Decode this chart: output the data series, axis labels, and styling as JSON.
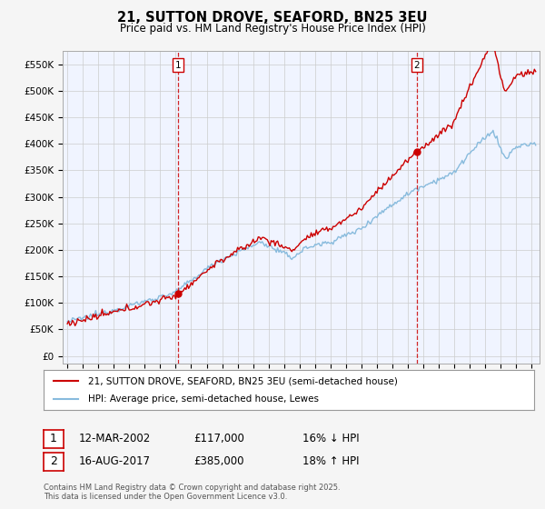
{
  "title": "21, SUTTON DROVE, SEAFORD, BN25 3EU",
  "subtitle": "Price paid vs. HM Land Registry's House Price Index (HPI)",
  "sale1_date": "12-MAR-2002",
  "sale1_price": 117000,
  "sale1_hpi_note": "16% ↓ HPI",
  "sale2_date": "16-AUG-2017",
  "sale2_price": 385000,
  "sale2_hpi_note": "18% ↑ HPI",
  "legend_property": "21, SUTTON DROVE, SEAFORD, BN25 3EU (semi-detached house)",
  "legend_hpi": "HPI: Average price, semi-detached house, Lewes",
  "footer": "Contains HM Land Registry data © Crown copyright and database right 2025.\nThis data is licensed under the Open Government Licence v3.0.",
  "ylabel_ticks": [
    "£0",
    "£50K",
    "£100K",
    "£150K",
    "£200K",
    "£250K",
    "£300K",
    "£350K",
    "£400K",
    "£450K",
    "£500K",
    "£550K"
  ],
  "ytick_values": [
    0,
    50000,
    100000,
    150000,
    200000,
    250000,
    300000,
    350000,
    400000,
    450000,
    500000,
    550000
  ],
  "property_color": "#cc0000",
  "hpi_color": "#88bbdd",
  "vline_color": "#cc0000",
  "background_color": "#f5f5f5",
  "plot_bg": "#f0f4ff"
}
